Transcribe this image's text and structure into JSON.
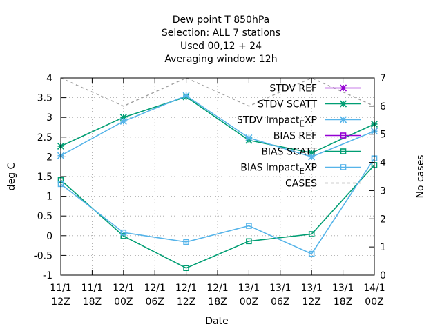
{
  "chart_data": {
    "type": "line",
    "title": [
      "Dew point T 850hPa",
      "Selection: ALL      7 stations",
      "Used  00,12  + 24",
      "Averaging window: 12h"
    ],
    "xlabel": "Date",
    "ylabel": "deg C",
    "y2label": "No cases",
    "ylim": [
      -1,
      4
    ],
    "y2lim": [
      0,
      7
    ],
    "yticks": [
      "-1",
      "-0.5",
      "0",
      "0.5",
      "1",
      "1.5",
      "2",
      "2.5",
      "3",
      "3.5",
      "4"
    ],
    "y2ticks": [
      "0",
      "1",
      "2",
      "3",
      "4",
      "5",
      "6",
      "7"
    ],
    "xticks": [
      [
        "11/1",
        "12Z"
      ],
      [
        "11/1",
        "18Z"
      ],
      [
        "12/1",
        "00Z"
      ],
      [
        "12/1",
        "06Z"
      ],
      [
        "12/1",
        "12Z"
      ],
      [
        "12/1",
        "18Z"
      ],
      [
        "13/1",
        "00Z"
      ],
      [
        "13/1",
        "06Z"
      ],
      [
        "13/1",
        "12Z"
      ],
      [
        "13/1",
        "18Z"
      ],
      [
        "14/1",
        "00Z"
      ]
    ],
    "grid": true,
    "legend_position": "top-right",
    "series": [
      {
        "name": "STDV REF",
        "axis": "y1",
        "color": "#9400d3",
        "marker": "star",
        "x": [],
        "values": []
      },
      {
        "name": "STDV SCATT",
        "axis": "y1",
        "color": "#009e73",
        "marker": "star",
        "x": [
          0,
          2,
          4,
          6,
          8,
          10
        ],
        "values": [
          2.27,
          3.0,
          3.52,
          2.42,
          2.1,
          2.83
        ]
      },
      {
        "name": "STDV Impact_EXP",
        "axis": "y1",
        "color": "#56b4e9",
        "marker": "star",
        "x": [
          0,
          2,
          4,
          6,
          8,
          10
        ],
        "values": [
          2.03,
          2.9,
          3.55,
          2.48,
          2.0,
          2.65
        ]
      },
      {
        "name": "BIAS REF",
        "axis": "y1",
        "color": "#9400d3",
        "marker": "square",
        "x": [],
        "values": []
      },
      {
        "name": "BIAS SCATT",
        "axis": "y1",
        "color": "#009e73",
        "marker": "square",
        "x": [
          0,
          2,
          4,
          6,
          8,
          10
        ],
        "values": [
          1.41,
          -0.01,
          -0.82,
          -0.14,
          0.04,
          1.79
        ]
      },
      {
        "name": "BIAS Impact_EXP",
        "axis": "y1",
        "color": "#56b4e9",
        "marker": "square",
        "x": [
          0,
          2,
          4,
          6,
          8,
          10
        ],
        "values": [
          1.31,
          0.08,
          -0.16,
          0.25,
          -0.46,
          1.96
        ]
      },
      {
        "name": "CASES",
        "axis": "y2",
        "color": "#a0a0a0",
        "marker": "none",
        "dashed": true,
        "x": [
          0,
          2,
          4,
          6,
          8,
          10
        ],
        "values": [
          7,
          6,
          7,
          6,
          7,
          6
        ]
      }
    ]
  }
}
